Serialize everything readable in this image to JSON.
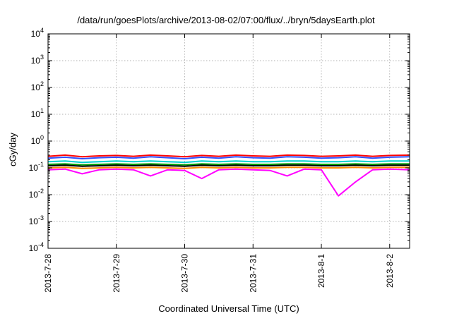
{
  "chart_data": {
    "type": "line",
    "title": "/data/run/goesPlots/archive/2013-08-02/07:00/flux/../bryn/5daysEarth.plot",
    "xlabel": "Coordinated Universal Time (UTC)",
    "ylabel": "cGy/day",
    "y_scale": "log",
    "ylim": [
      0.0001,
      10000
    ],
    "y_ticks": [
      {
        "value": 0.0001,
        "base": "10",
        "exp": "-4"
      },
      {
        "value": 0.001,
        "base": "10",
        "exp": "-3"
      },
      {
        "value": 0.01,
        "base": "10",
        "exp": "-2"
      },
      {
        "value": 0.1,
        "base": "10",
        "exp": "-1"
      },
      {
        "value": 1,
        "base": "10",
        "exp": "0"
      },
      {
        "value": 10,
        "base": "10",
        "exp": "1"
      },
      {
        "value": 100,
        "base": "10",
        "exp": "2"
      },
      {
        "value": 1000,
        "base": "10",
        "exp": "3"
      },
      {
        "value": 10000,
        "base": "10",
        "exp": "4"
      }
    ],
    "x_ticks": [
      "2013-7-28",
      "2013-7-29",
      "2013-7-30",
      "2013-7-31",
      "2013-8-1",
      "2013-8-2"
    ],
    "xlim": [
      "2013-07-28 00:00",
      "2013-08-02 07:00"
    ],
    "grid": true,
    "series": [
      {
        "color": "#ff0000",
        "x": [
          "2013-07-28 00:00",
          "2013-07-28 06:00",
          "2013-07-28 12:00",
          "2013-07-28 18:00",
          "2013-07-29 00:00",
          "2013-07-29 06:00",
          "2013-07-29 12:00",
          "2013-07-29 18:00",
          "2013-07-30 00:00",
          "2013-07-30 06:00",
          "2013-07-30 12:00",
          "2013-07-30 18:00",
          "2013-07-31 00:00",
          "2013-07-31 06:00",
          "2013-07-31 12:00",
          "2013-07-31 18:00",
          "2013-08-01 00:00",
          "2013-08-01 06:00",
          "2013-08-01 12:00",
          "2013-08-01 18:00",
          "2013-08-02 00:00",
          "2013-08-02 07:00"
        ],
        "values": [
          0.27,
          0.3,
          0.26,
          0.28,
          0.29,
          0.27,
          0.3,
          0.28,
          0.26,
          0.29,
          0.27,
          0.3,
          0.28,
          0.27,
          0.3,
          0.29,
          0.27,
          0.28,
          0.3,
          0.27,
          0.29,
          0.3
        ]
      },
      {
        "color": "#3050ff",
        "x": [
          "2013-07-28 00:00",
          "2013-07-28 06:00",
          "2013-07-28 12:00",
          "2013-07-28 18:00",
          "2013-07-29 00:00",
          "2013-07-29 06:00",
          "2013-07-29 12:00",
          "2013-07-29 18:00",
          "2013-07-30 00:00",
          "2013-07-30 06:00",
          "2013-07-30 12:00",
          "2013-07-30 18:00",
          "2013-07-31 00:00",
          "2013-07-31 06:00",
          "2013-07-31 12:00",
          "2013-07-31 18:00",
          "2013-08-01 00:00",
          "2013-08-01 06:00",
          "2013-08-01 12:00",
          "2013-08-01 18:00",
          "2013-08-02 00:00",
          "2013-08-02 07:00"
        ],
        "values": [
          0.23,
          0.25,
          0.22,
          0.24,
          0.25,
          0.23,
          0.26,
          0.24,
          0.22,
          0.25,
          0.23,
          0.26,
          0.24,
          0.23,
          0.26,
          0.25,
          0.23,
          0.24,
          0.26,
          0.23,
          0.25,
          0.26
        ]
      },
      {
        "color": "#00d0d0",
        "x": [
          "2013-07-28 00:00",
          "2013-07-28 06:00",
          "2013-07-28 12:00",
          "2013-07-28 18:00",
          "2013-07-29 00:00",
          "2013-07-29 06:00",
          "2013-07-29 12:00",
          "2013-07-29 18:00",
          "2013-07-30 00:00",
          "2013-07-30 06:00",
          "2013-07-30 12:00",
          "2013-07-30 18:00",
          "2013-07-31 00:00",
          "2013-07-31 06:00",
          "2013-07-31 12:00",
          "2013-07-31 18:00",
          "2013-08-01 00:00",
          "2013-08-01 06:00",
          "2013-08-01 12:00",
          "2013-08-01 18:00",
          "2013-08-02 00:00",
          "2013-08-02 07:00"
        ],
        "values": [
          0.17,
          0.18,
          0.16,
          0.17,
          0.18,
          0.17,
          0.18,
          0.17,
          0.16,
          0.18,
          0.17,
          0.18,
          0.17,
          0.17,
          0.18,
          0.18,
          0.17,
          0.17,
          0.18,
          0.17,
          0.18,
          0.18
        ]
      },
      {
        "color": "#00a000",
        "x": [
          "2013-07-28 00:00",
          "2013-07-28 06:00",
          "2013-07-28 12:00",
          "2013-07-28 18:00",
          "2013-07-29 00:00",
          "2013-07-29 06:00",
          "2013-07-29 12:00",
          "2013-07-29 18:00",
          "2013-07-30 00:00",
          "2013-07-30 06:00",
          "2013-07-30 12:00",
          "2013-07-30 18:00",
          "2013-07-31 00:00",
          "2013-07-31 06:00",
          "2013-07-31 12:00",
          "2013-07-31 18:00",
          "2013-08-01 00:00",
          "2013-08-01 06:00",
          "2013-08-01 12:00",
          "2013-08-01 18:00",
          "2013-08-02 00:00",
          "2013-08-02 07:00"
        ],
        "values": [
          0.135,
          0.14,
          0.13,
          0.135,
          0.14,
          0.135,
          0.14,
          0.135,
          0.13,
          0.14,
          0.135,
          0.14,
          0.135,
          0.135,
          0.14,
          0.14,
          0.135,
          0.135,
          0.14,
          0.135,
          0.14,
          0.14
        ]
      },
      {
        "color": "#000000",
        "x": [
          "2013-07-28 00:00",
          "2013-07-28 06:00",
          "2013-07-28 12:00",
          "2013-07-28 18:00",
          "2013-07-29 00:00",
          "2013-07-29 06:00",
          "2013-07-29 12:00",
          "2013-07-29 18:00",
          "2013-07-30 00:00",
          "2013-07-30 06:00",
          "2013-07-30 12:00",
          "2013-07-30 18:00",
          "2013-07-31 00:00",
          "2013-07-31 06:00",
          "2013-07-31 12:00",
          "2013-07-31 18:00",
          "2013-08-01 00:00",
          "2013-08-01 06:00",
          "2013-08-01 12:00",
          "2013-08-01 18:00",
          "2013-08-02 00:00",
          "2013-08-02 07:00"
        ],
        "values": [
          0.12,
          0.125,
          0.115,
          0.12,
          0.125,
          0.12,
          0.125,
          0.12,
          0.115,
          0.125,
          0.12,
          0.125,
          0.12,
          0.12,
          0.125,
          0.125,
          0.12,
          0.12,
          0.125,
          0.12,
          0.125,
          0.125
        ]
      },
      {
        "color": "#ff8c00",
        "x": [
          "2013-07-28 00:00",
          "2013-07-28 06:00",
          "2013-07-28 12:00",
          "2013-07-28 18:00",
          "2013-07-29 00:00",
          "2013-07-29 06:00",
          "2013-07-29 12:00",
          "2013-07-29 18:00",
          "2013-07-30 00:00",
          "2013-07-30 06:00",
          "2013-07-30 12:00",
          "2013-07-30 18:00",
          "2013-07-31 00:00",
          "2013-07-31 06:00",
          "2013-07-31 12:00",
          "2013-07-31 18:00",
          "2013-08-01 00:00",
          "2013-08-01 06:00",
          "2013-08-01 12:00",
          "2013-08-01 18:00",
          "2013-08-02 00:00",
          "2013-08-02 07:00"
        ],
        "values": [
          0.1,
          0.105,
          0.095,
          0.1,
          0.105,
          0.1,
          0.105,
          0.1,
          0.095,
          0.105,
          0.1,
          0.105,
          0.1,
          0.1,
          0.105,
          0.105,
          0.1,
          0.1,
          0.105,
          0.1,
          0.105,
          0.105
        ]
      },
      {
        "color": "#ff00ff",
        "x": [
          "2013-07-28 00:00",
          "2013-07-28 06:00",
          "2013-07-28 12:00",
          "2013-07-28 18:00",
          "2013-07-29 00:00",
          "2013-07-29 06:00",
          "2013-07-29 12:00",
          "2013-07-29 18:00",
          "2013-07-30 00:00",
          "2013-07-30 06:00",
          "2013-07-30 12:00",
          "2013-07-30 18:00",
          "2013-07-31 00:00",
          "2013-07-31 06:00",
          "2013-07-31 12:00",
          "2013-07-31 18:00",
          "2013-08-01 00:00",
          "2013-08-01 06:00",
          "2013-08-01 12:00",
          "2013-08-01 18:00",
          "2013-08-02 00:00",
          "2013-08-02 07:00"
        ],
        "values": [
          0.085,
          0.09,
          0.06,
          0.085,
          0.09,
          0.085,
          0.05,
          0.085,
          0.08,
          0.04,
          0.085,
          0.09,
          0.085,
          0.08,
          0.05,
          0.09,
          0.085,
          0.009,
          0.03,
          0.085,
          0.09,
          0.085
        ]
      }
    ]
  }
}
